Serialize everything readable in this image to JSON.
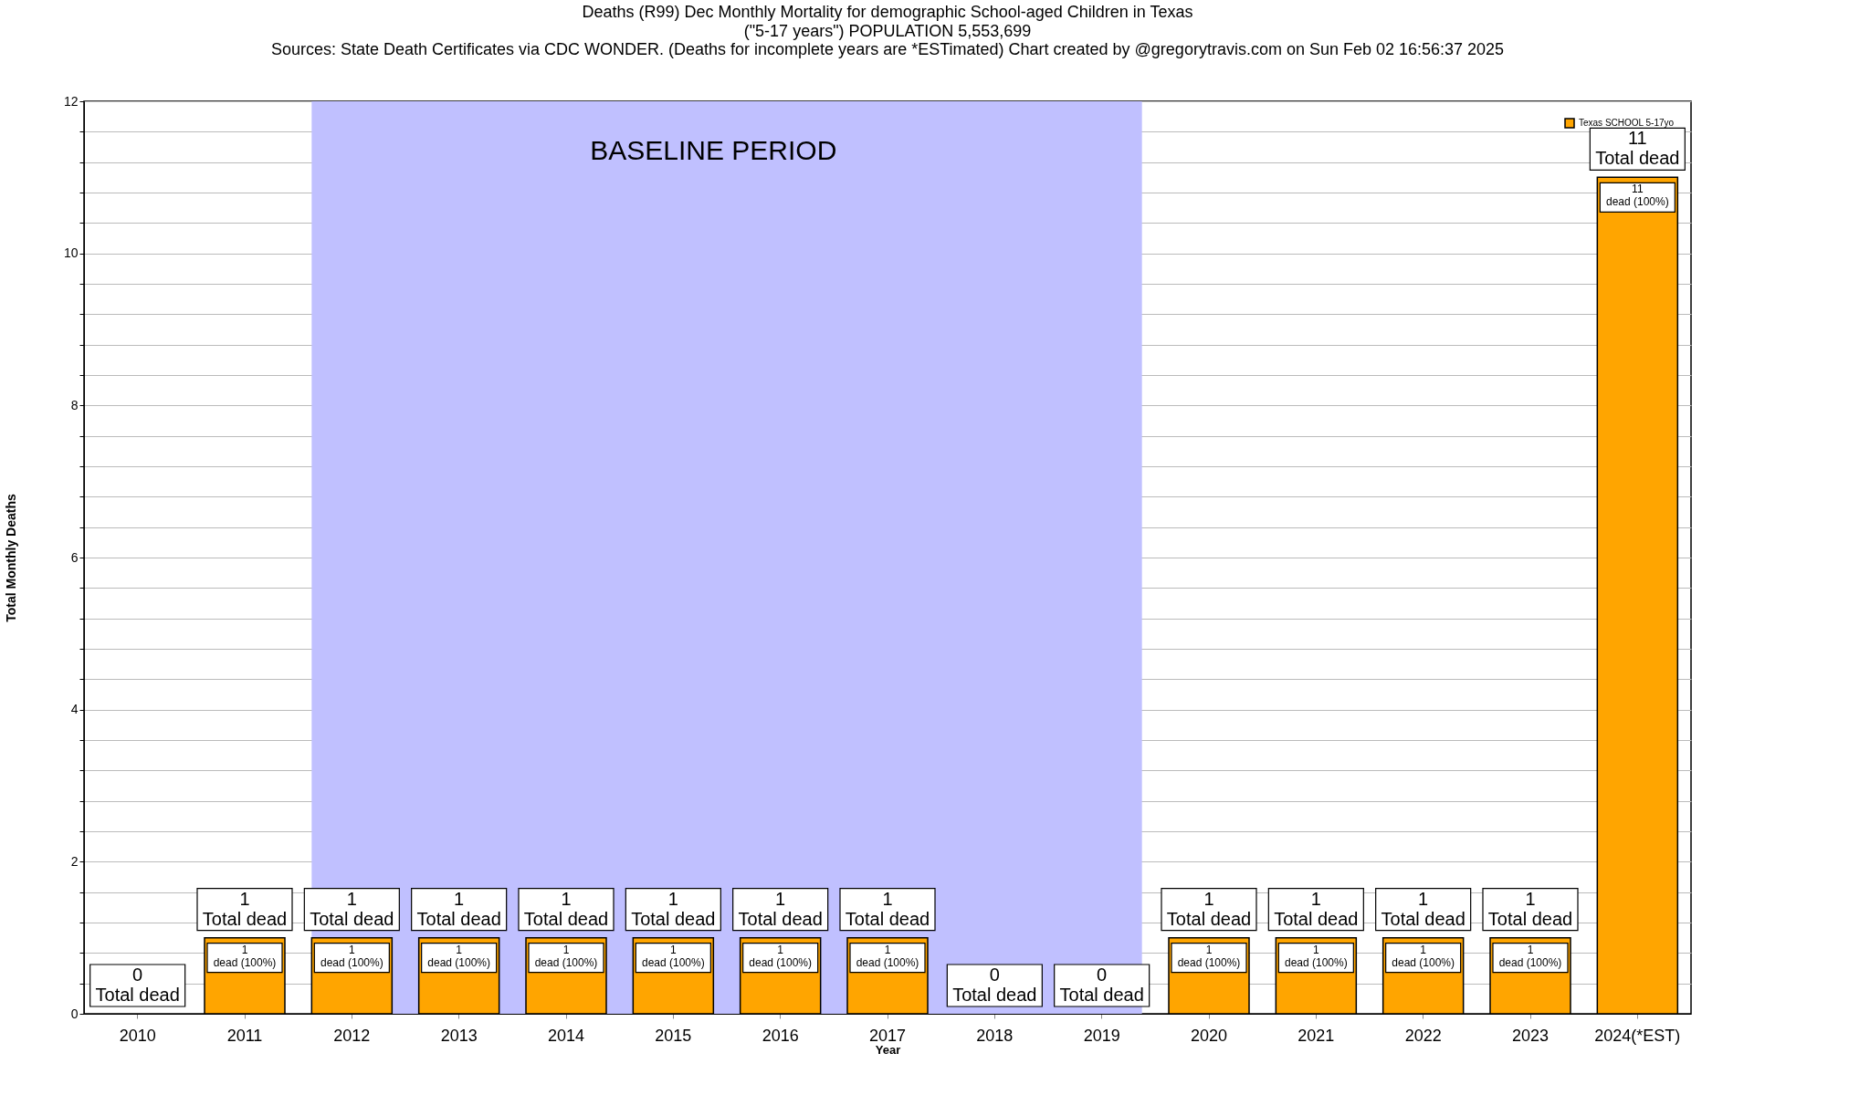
{
  "chart_data": {
    "type": "bar",
    "title": "Deaths (R99) Dec Monthly Mortality for demographic School-aged Children in Texas",
    "subtitle": "(\"5-17 years\") POPULATION 5,553,699\nSources: State Death Certificates via CDC WONDER. (Deaths for incomplete years are *ESTimated)                Chart created by @gregorytravis.com on Sun Feb 02 16:56:37 2025",
    "xlabel": "Year",
    "ylabel": "Total Monthly Deaths",
    "categories": [
      "2010",
      "2011",
      "2012",
      "2013",
      "2014",
      "2015",
      "2016",
      "2017",
      "2018",
      "2019",
      "2020",
      "2021",
      "2022",
      "2023",
      "2024(*EST)"
    ],
    "series": [
      {
        "name": "Texas SCHOOL 5-17yo",
        "color": "#ffa500",
        "values": [
          0,
          1,
          1,
          1,
          1,
          1,
          1,
          1,
          0,
          0,
          1,
          1,
          1,
          1,
          11
        ],
        "value_labels": [
          "0\nTotal dead",
          "1\nTotal dead",
          "1\nTotal dead",
          "1\nTotal dead",
          "1\nTotal dead",
          "1\nTotal dead",
          "1\nTotal dead",
          "1\nTotal dead",
          "0\nTotal dead",
          "0\nTotal dead",
          "1\nTotal dead",
          "1\nTotal dead",
          "1\nTotal dead",
          "1\nTotal dead",
          "11\nTotal dead"
        ]
      }
    ],
    "annotations": [
      {
        "text": "1\ndead (100%)",
        "x": "2011",
        "y": 1
      },
      {
        "text": "1\ndead (100%)",
        "x": "2012",
        "y": 1
      },
      {
        "text": "1\ndead (100%)",
        "x": "2013",
        "y": 1
      },
      {
        "text": "1\ndead (100%)",
        "x": "2014",
        "y": 1
      },
      {
        "text": "1\ndead (100%)",
        "x": "2015",
        "y": 1
      },
      {
        "text": "1\ndead (100%)",
        "x": "2016",
        "y": 1
      },
      {
        "text": "1\ndead (100%)",
        "x": "2017",
        "y": 1
      },
      {
        "text": "1\ndead (100%)",
        "x": "2020",
        "y": 1
      },
      {
        "text": "1\ndead (100%)",
        "x": "2021",
        "y": 1
      },
      {
        "text": "1\ndead (100%)",
        "x": "2022",
        "y": 1
      },
      {
        "text": "1\ndead (100%)",
        "x": "2023",
        "y": 1
      },
      {
        "text": "11\ndead (100%)",
        "x": "2024(*EST)",
        "y": 11
      }
    ],
    "bands": [
      {
        "axis": "x",
        "from": "2012",
        "to": "2019",
        "label": "BASELINE PERIOD",
        "color": "#c0c0ff"
      }
    ],
    "ylim": [
      0,
      12
    ],
    "yticks": [
      0,
      {
        "value": 0.4,
        "label": null
      },
      {
        "value": 0.8,
        "label": null
      },
      {
        "value": 1.2,
        "label": null
      },
      {
        "value": 1.6,
        "label": null
      },
      2,
      {
        "value": 2.4,
        "label": null
      },
      {
        "value": 2.8,
        "label": null
      },
      {
        "value": 3.2,
        "label": null
      },
      {
        "value": 3.6,
        "label": null
      },
      4,
      {
        "value": 4.4,
        "label": null
      },
      {
        "value": 4.8,
        "label": null
      },
      {
        "value": 5.2,
        "label": null
      },
      {
        "value": 5.6,
        "label": null
      },
      6,
      {
        "value": 6.4,
        "label": null
      },
      {
        "value": 6.8,
        "label": null
      },
      {
        "value": 7.2,
        "label": null
      },
      {
        "value": 7.6,
        "label": null
      },
      8,
      {
        "value": 8.4,
        "label": null
      },
      {
        "value": 8.8,
        "label": null
      },
      {
        "value": 9.2,
        "label": null
      },
      {
        "value": 9.6,
        "label": null
      },
      10,
      {
        "value": 10.4,
        "label": null
      },
      {
        "value": 10.8,
        "label": null
      },
      {
        "value": 11.2,
        "label": null
      },
      {
        "value": 11.6,
        "label": null
      },
      12
    ],
    "grid": "y",
    "legend": "top right"
  }
}
